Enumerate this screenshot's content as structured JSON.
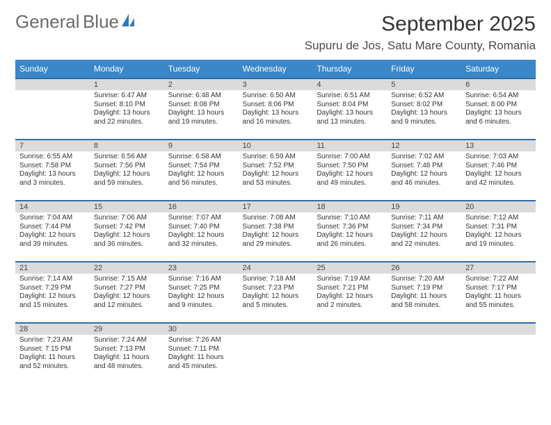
{
  "logo": {
    "word1": "General",
    "word2": "Blue",
    "icon_color": "#2f79bd",
    "word1_color": "#6b6b6b",
    "word2_color": "#2f79bd"
  },
  "title": "September 2025",
  "location": "Supuru de Jos, Satu Mare County, Romania",
  "headers": [
    "Sunday",
    "Monday",
    "Tuesday",
    "Wednesday",
    "Thursday",
    "Friday",
    "Saturday"
  ],
  "colors": {
    "header_bg": "#3b87c8",
    "daynum_bg": "#dbdbdb",
    "daynum_border": "#2f6da3",
    "text": "#333333"
  },
  "weeks": [
    [
      {
        "n": "",
        "sunrise": "",
        "sunset": "",
        "daylight1": "",
        "daylight2": ""
      },
      {
        "n": "1",
        "sunrise": "Sunrise: 6:47 AM",
        "sunset": "Sunset: 8:10 PM",
        "daylight1": "Daylight: 13 hours",
        "daylight2": "and 22 minutes."
      },
      {
        "n": "2",
        "sunrise": "Sunrise: 6:48 AM",
        "sunset": "Sunset: 8:08 PM",
        "daylight1": "Daylight: 13 hours",
        "daylight2": "and 19 minutes."
      },
      {
        "n": "3",
        "sunrise": "Sunrise: 6:50 AM",
        "sunset": "Sunset: 8:06 PM",
        "daylight1": "Daylight: 13 hours",
        "daylight2": "and 16 minutes."
      },
      {
        "n": "4",
        "sunrise": "Sunrise: 6:51 AM",
        "sunset": "Sunset: 8:04 PM",
        "daylight1": "Daylight: 13 hours",
        "daylight2": "and 13 minutes."
      },
      {
        "n": "5",
        "sunrise": "Sunrise: 6:52 AM",
        "sunset": "Sunset: 8:02 PM",
        "daylight1": "Daylight: 13 hours",
        "daylight2": "and 9 minutes."
      },
      {
        "n": "6",
        "sunrise": "Sunrise: 6:54 AM",
        "sunset": "Sunset: 8:00 PM",
        "daylight1": "Daylight: 13 hours",
        "daylight2": "and 6 minutes."
      }
    ],
    [
      {
        "n": "7",
        "sunrise": "Sunrise: 6:55 AM",
        "sunset": "Sunset: 7:58 PM",
        "daylight1": "Daylight: 13 hours",
        "daylight2": "and 3 minutes."
      },
      {
        "n": "8",
        "sunrise": "Sunrise: 6:56 AM",
        "sunset": "Sunset: 7:56 PM",
        "daylight1": "Daylight: 12 hours",
        "daylight2": "and 59 minutes."
      },
      {
        "n": "9",
        "sunrise": "Sunrise: 6:58 AM",
        "sunset": "Sunset: 7:54 PM",
        "daylight1": "Daylight: 12 hours",
        "daylight2": "and 56 minutes."
      },
      {
        "n": "10",
        "sunrise": "Sunrise: 6:59 AM",
        "sunset": "Sunset: 7:52 PM",
        "daylight1": "Daylight: 12 hours",
        "daylight2": "and 53 minutes."
      },
      {
        "n": "11",
        "sunrise": "Sunrise: 7:00 AM",
        "sunset": "Sunset: 7:50 PM",
        "daylight1": "Daylight: 12 hours",
        "daylight2": "and 49 minutes."
      },
      {
        "n": "12",
        "sunrise": "Sunrise: 7:02 AM",
        "sunset": "Sunset: 7:48 PM",
        "daylight1": "Daylight: 12 hours",
        "daylight2": "and 46 minutes."
      },
      {
        "n": "13",
        "sunrise": "Sunrise: 7:03 AM",
        "sunset": "Sunset: 7:46 PM",
        "daylight1": "Daylight: 12 hours",
        "daylight2": "and 42 minutes."
      }
    ],
    [
      {
        "n": "14",
        "sunrise": "Sunrise: 7:04 AM",
        "sunset": "Sunset: 7:44 PM",
        "daylight1": "Daylight: 12 hours",
        "daylight2": "and 39 minutes."
      },
      {
        "n": "15",
        "sunrise": "Sunrise: 7:06 AM",
        "sunset": "Sunset: 7:42 PM",
        "daylight1": "Daylight: 12 hours",
        "daylight2": "and 36 minutes."
      },
      {
        "n": "16",
        "sunrise": "Sunrise: 7:07 AM",
        "sunset": "Sunset: 7:40 PM",
        "daylight1": "Daylight: 12 hours",
        "daylight2": "and 32 minutes."
      },
      {
        "n": "17",
        "sunrise": "Sunrise: 7:08 AM",
        "sunset": "Sunset: 7:38 PM",
        "daylight1": "Daylight: 12 hours",
        "daylight2": "and 29 minutes."
      },
      {
        "n": "18",
        "sunrise": "Sunrise: 7:10 AM",
        "sunset": "Sunset: 7:36 PM",
        "daylight1": "Daylight: 12 hours",
        "daylight2": "and 26 minutes."
      },
      {
        "n": "19",
        "sunrise": "Sunrise: 7:11 AM",
        "sunset": "Sunset: 7:34 PM",
        "daylight1": "Daylight: 12 hours",
        "daylight2": "and 22 minutes."
      },
      {
        "n": "20",
        "sunrise": "Sunrise: 7:12 AM",
        "sunset": "Sunset: 7:31 PM",
        "daylight1": "Daylight: 12 hours",
        "daylight2": "and 19 minutes."
      }
    ],
    [
      {
        "n": "21",
        "sunrise": "Sunrise: 7:14 AM",
        "sunset": "Sunset: 7:29 PM",
        "daylight1": "Daylight: 12 hours",
        "daylight2": "and 15 minutes."
      },
      {
        "n": "22",
        "sunrise": "Sunrise: 7:15 AM",
        "sunset": "Sunset: 7:27 PM",
        "daylight1": "Daylight: 12 hours",
        "daylight2": "and 12 minutes."
      },
      {
        "n": "23",
        "sunrise": "Sunrise: 7:16 AM",
        "sunset": "Sunset: 7:25 PM",
        "daylight1": "Daylight: 12 hours",
        "daylight2": "and 9 minutes."
      },
      {
        "n": "24",
        "sunrise": "Sunrise: 7:18 AM",
        "sunset": "Sunset: 7:23 PM",
        "daylight1": "Daylight: 12 hours",
        "daylight2": "and 5 minutes."
      },
      {
        "n": "25",
        "sunrise": "Sunrise: 7:19 AM",
        "sunset": "Sunset: 7:21 PM",
        "daylight1": "Daylight: 12 hours",
        "daylight2": "and 2 minutes."
      },
      {
        "n": "26",
        "sunrise": "Sunrise: 7:20 AM",
        "sunset": "Sunset: 7:19 PM",
        "daylight1": "Daylight: 11 hours",
        "daylight2": "and 58 minutes."
      },
      {
        "n": "27",
        "sunrise": "Sunrise: 7:22 AM",
        "sunset": "Sunset: 7:17 PM",
        "daylight1": "Daylight: 11 hours",
        "daylight2": "and 55 minutes."
      }
    ],
    [
      {
        "n": "28",
        "sunrise": "Sunrise: 7:23 AM",
        "sunset": "Sunset: 7:15 PM",
        "daylight1": "Daylight: 11 hours",
        "daylight2": "and 52 minutes."
      },
      {
        "n": "29",
        "sunrise": "Sunrise: 7:24 AM",
        "sunset": "Sunset: 7:13 PM",
        "daylight1": "Daylight: 11 hours",
        "daylight2": "and 48 minutes."
      },
      {
        "n": "30",
        "sunrise": "Sunrise: 7:26 AM",
        "sunset": "Sunset: 7:11 PM",
        "daylight1": "Daylight: 11 hours",
        "daylight2": "and 45 minutes."
      },
      {
        "n": "",
        "sunrise": "",
        "sunset": "",
        "daylight1": "",
        "daylight2": ""
      },
      {
        "n": "",
        "sunrise": "",
        "sunset": "",
        "daylight1": "",
        "daylight2": ""
      },
      {
        "n": "",
        "sunrise": "",
        "sunset": "",
        "daylight1": "",
        "daylight2": ""
      },
      {
        "n": "",
        "sunrise": "",
        "sunset": "",
        "daylight1": "",
        "daylight2": ""
      }
    ]
  ]
}
